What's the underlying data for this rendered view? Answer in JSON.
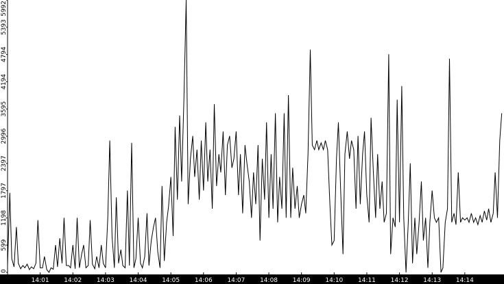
{
  "chart_data": {
    "type": "line",
    "title": "",
    "xlabel": "",
    "ylabel": "",
    "grid": false,
    "legend": "none",
    "ylim": [
      0,
      5992
    ],
    "y_ticks": [
      "0",
      "599",
      "1198",
      "1797",
      "2397",
      "2996",
      "3595",
      "4194",
      "4794",
      "5393",
      "5992"
    ],
    "x_ticks": [
      "14:01",
      "14:02",
      "14:03",
      "14:04",
      "14:05",
      "14:06",
      "14:07",
      "14:08",
      "14:09",
      "14:10",
      "14:11",
      "14:12",
      "14:13",
      "14:14"
    ],
    "x_range_minutes": [
      0,
      15.2
    ],
    "series": [
      {
        "color": "#000000",
        "points": [
          [
            0.0,
            150
          ],
          [
            0.07,
            1750
          ],
          [
            0.13,
            300
          ],
          [
            0.2,
            120
          ],
          [
            0.27,
            1000
          ],
          [
            0.33,
            200
          ],
          [
            0.4,
            80
          ],
          [
            0.47,
            150
          ],
          [
            0.53,
            100
          ],
          [
            0.6,
            180
          ],
          [
            0.67,
            60
          ],
          [
            0.73,
            120
          ],
          [
            0.8,
            80
          ],
          [
            0.87,
            200
          ],
          [
            0.93,
            1150
          ],
          [
            1.0,
            100
          ],
          [
            1.07,
            100
          ],
          [
            1.13,
            350
          ],
          [
            1.2,
            60
          ],
          [
            1.27,
            0
          ],
          [
            1.33,
            100
          ],
          [
            1.4,
            70
          ],
          [
            1.47,
            600
          ],
          [
            1.53,
            120
          ],
          [
            1.6,
            750
          ],
          [
            1.67,
            200
          ],
          [
            1.73,
            1200
          ],
          [
            1.8,
            150
          ],
          [
            1.87,
            150
          ],
          [
            1.93,
            100
          ],
          [
            2.0,
            600
          ],
          [
            2.07,
            80
          ],
          [
            2.13,
            1200
          ],
          [
            2.2,
            100
          ],
          [
            2.27,
            400
          ],
          [
            2.33,
            600
          ],
          [
            2.4,
            100
          ],
          [
            2.47,
            150
          ],
          [
            2.53,
            1150
          ],
          [
            2.6,
            180
          ],
          [
            2.67,
            80
          ],
          [
            2.73,
            350
          ],
          [
            2.8,
            100
          ],
          [
            2.87,
            600
          ],
          [
            2.93,
            200
          ],
          [
            3.0,
            100
          ],
          [
            3.07,
            1200
          ],
          [
            3.13,
            2900
          ],
          [
            3.2,
            800
          ],
          [
            3.27,
            100
          ],
          [
            3.33,
            1650
          ],
          [
            3.4,
            200
          ],
          [
            3.47,
            500
          ],
          [
            3.53,
            150
          ],
          [
            3.6,
            100
          ],
          [
            3.67,
            1800
          ],
          [
            3.73,
            150
          ],
          [
            3.8,
            2850
          ],
          [
            3.87,
            100
          ],
          [
            3.93,
            300
          ],
          [
            4.0,
            1200
          ],
          [
            4.07,
            200
          ],
          [
            4.13,
            100
          ],
          [
            4.2,
            350
          ],
          [
            4.27,
            1300
          ],
          [
            4.33,
            150
          ],
          [
            4.4,
            700
          ],
          [
            4.47,
            1000
          ],
          [
            4.53,
            1200
          ],
          [
            4.6,
            450
          ],
          [
            4.67,
            100
          ],
          [
            4.73,
            1900
          ],
          [
            4.8,
            250
          ],
          [
            4.87,
            1100
          ],
          [
            4.93,
            1450
          ],
          [
            5.0,
            2100
          ],
          [
            5.07,
            800
          ],
          [
            5.13,
            3200
          ],
          [
            5.2,
            1600
          ],
          [
            5.27,
            3450
          ],
          [
            5.33,
            2000
          ],
          [
            5.4,
            3800
          ],
          [
            5.47,
            5992
          ],
          [
            5.53,
            1500
          ],
          [
            5.6,
            2500
          ],
          [
            5.67,
            3000
          ],
          [
            5.73,
            2100
          ],
          [
            5.8,
            2700
          ],
          [
            5.87,
            1600
          ],
          [
            5.93,
            2900
          ],
          [
            6.0,
            1800
          ],
          [
            6.07,
            3300
          ],
          [
            6.13,
            2000
          ],
          [
            6.2,
            2700
          ],
          [
            6.27,
            1400
          ],
          [
            6.33,
            3700
          ],
          [
            6.4,
            1900
          ],
          [
            6.47,
            2600
          ],
          [
            6.53,
            2200
          ],
          [
            6.6,
            3100
          ],
          [
            6.67,
            1700
          ],
          [
            6.73,
            2800
          ],
          [
            6.8,
            3000
          ],
          [
            6.87,
            2300
          ],
          [
            6.93,
            2500
          ],
          [
            7.0,
            3100
          ],
          [
            7.07,
            1700
          ],
          [
            7.13,
            2600
          ],
          [
            7.2,
            1300
          ],
          [
            7.27,
            2800
          ],
          [
            7.33,
            2400
          ],
          [
            7.4,
            2000
          ],
          [
            7.47,
            1200
          ],
          [
            7.53,
            2200
          ],
          [
            7.6,
            1500
          ],
          [
            7.67,
            2800
          ],
          [
            7.73,
            700
          ],
          [
            7.8,
            2500
          ],
          [
            7.87,
            1600
          ],
          [
            7.93,
            3300
          ],
          [
            8.0,
            1200
          ],
          [
            8.07,
            2600
          ],
          [
            8.13,
            1400
          ],
          [
            8.2,
            3500
          ],
          [
            8.27,
            1100
          ],
          [
            8.33,
            2100
          ],
          [
            8.4,
            1400
          ],
          [
            8.47,
            3500
          ],
          [
            8.53,
            1200
          ],
          [
            8.6,
            3900
          ],
          [
            8.67,
            1200
          ],
          [
            8.73,
            2300
          ],
          [
            8.8,
            1400
          ],
          [
            8.87,
            1900
          ],
          [
            8.93,
            1200
          ],
          [
            9.0,
            1500
          ],
          [
            9.07,
            1700
          ],
          [
            9.13,
            1300
          ],
          [
            9.2,
            2600
          ],
          [
            9.27,
            4900
          ],
          [
            9.33,
            2800
          ],
          [
            9.4,
            2700
          ],
          [
            9.47,
            2900
          ],
          [
            9.53,
            2700
          ],
          [
            9.6,
            2850
          ],
          [
            9.67,
            2700
          ],
          [
            9.73,
            2900
          ],
          [
            9.8,
            2700
          ],
          [
            9.87,
            1500
          ],
          [
            9.93,
            600
          ],
          [
            10.0,
            700
          ],
          [
            10.07,
            2500
          ],
          [
            10.13,
            3300
          ],
          [
            10.2,
            1800
          ],
          [
            10.27,
            400
          ],
          [
            10.33,
            2600
          ],
          [
            10.4,
            3100
          ],
          [
            10.47,
            2500
          ],
          [
            10.53,
            2900
          ],
          [
            10.6,
            2700
          ],
          [
            10.67,
            1400
          ],
          [
            10.73,
            3000
          ],
          [
            10.8,
            1500
          ],
          [
            10.87,
            2600
          ],
          [
            10.93,
            3100
          ],
          [
            11.0,
            1700
          ],
          [
            11.07,
            1100
          ],
          [
            11.13,
            3400
          ],
          [
            11.2,
            2200
          ],
          [
            11.27,
            1200
          ],
          [
            11.33,
            2600
          ],
          [
            11.4,
            1400
          ],
          [
            11.47,
            2000
          ],
          [
            11.53,
            1100
          ],
          [
            11.6,
            1300
          ],
          [
            11.67,
            4800
          ],
          [
            11.73,
            400
          ],
          [
            11.8,
            1200
          ],
          [
            11.87,
            1000
          ],
          [
            11.93,
            3800
          ],
          [
            12.0,
            1100
          ],
          [
            12.07,
            4100
          ],
          [
            12.13,
            1200
          ],
          [
            12.2,
            0
          ],
          [
            12.27,
            1100
          ],
          [
            12.33,
            2400
          ],
          [
            12.4,
            200
          ],
          [
            12.47,
            1200
          ],
          [
            12.53,
            400
          ],
          [
            12.6,
            1100
          ],
          [
            12.67,
            2000
          ],
          [
            12.73,
            700
          ],
          [
            12.8,
            1200
          ],
          [
            12.87,
            100
          ],
          [
            12.93,
            1100
          ],
          [
            13.0,
            1800
          ],
          [
            13.07,
            1200
          ],
          [
            13.13,
            1100
          ],
          [
            13.2,
            1200
          ],
          [
            13.27,
            0
          ],
          [
            13.33,
            100
          ],
          [
            13.4,
            1100
          ],
          [
            13.47,
            1400
          ],
          [
            13.53,
            4700
          ],
          [
            13.6,
            1100
          ],
          [
            13.67,
            1300
          ],
          [
            13.73,
            1050
          ],
          [
            13.8,
            2200
          ],
          [
            13.87,
            1100
          ],
          [
            13.93,
            1200
          ],
          [
            14.0,
            1150
          ],
          [
            14.07,
            1200
          ],
          [
            14.13,
            1100
          ],
          [
            14.2,
            1300
          ],
          [
            14.27,
            1100
          ],
          [
            14.33,
            1200
          ],
          [
            14.4,
            1050
          ],
          [
            14.47,
            1250
          ],
          [
            14.53,
            1100
          ],
          [
            14.6,
            1350
          ],
          [
            14.67,
            1150
          ],
          [
            14.73,
            1400
          ],
          [
            14.8,
            1100
          ],
          [
            14.87,
            1300
          ],
          [
            14.93,
            2200
          ],
          [
            15.0,
            1200
          ],
          [
            15.07,
            2900
          ],
          [
            15.13,
            3500
          ]
        ]
      }
    ]
  }
}
